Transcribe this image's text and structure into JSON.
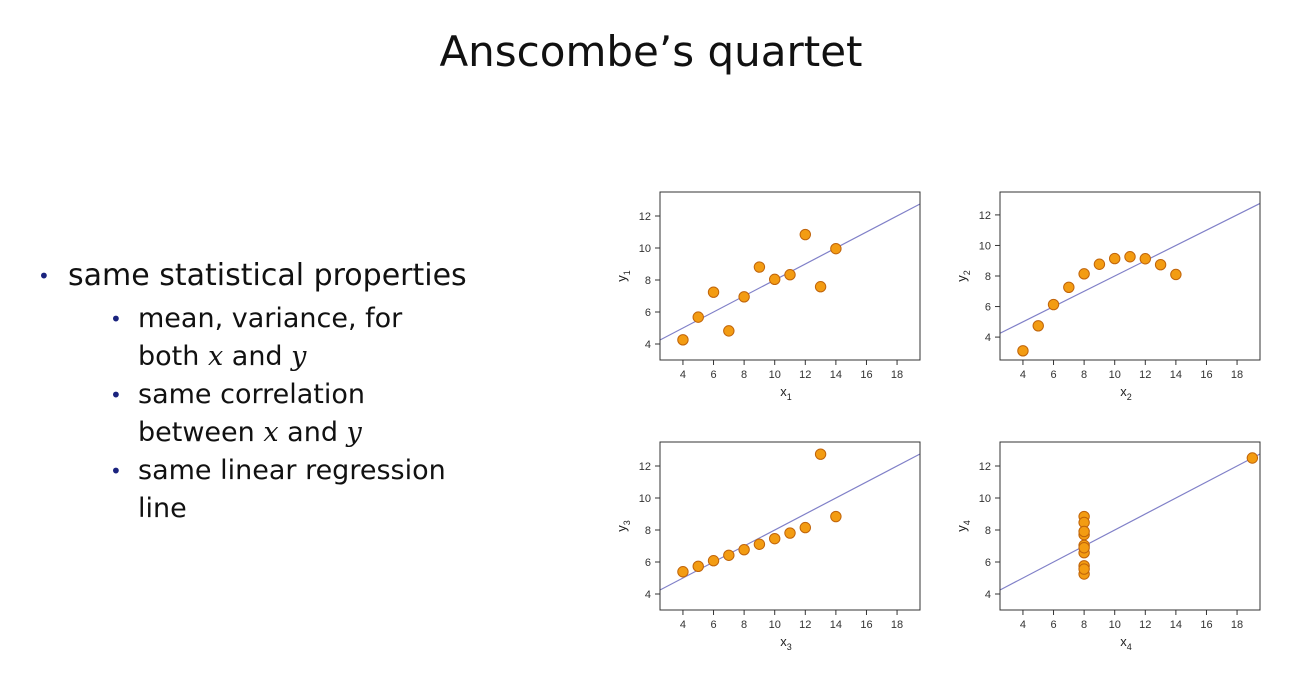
{
  "slide": {
    "title": "Anscombe’s quartet",
    "bullets": [
      {
        "text": "same statistical properties",
        "sub": [
          {
            "parts": [
              "mean, variance, for",
              "both ",
              "x",
              " and ",
              "y"
            ]
          },
          {
            "parts": [
              "same correlation",
              "between ",
              "x",
              " and ",
              "y"
            ]
          },
          {
            "parts": [
              "same linear regression",
              "line"
            ]
          }
        ]
      }
    ]
  },
  "colors": {
    "point": "#f39c12",
    "point_edge": "#c0640a",
    "line": "#8080c8",
    "axis": "#333333"
  },
  "chart_data": [
    {
      "type": "scatter",
      "xlabel": "x",
      "xlabel_sub": "1",
      "ylabel": "y",
      "ylabel_sub": "1",
      "xlim": [
        2.5,
        19.5
      ],
      "ylim": [
        3,
        13.5
      ],
      "xticks": [
        4,
        6,
        8,
        10,
        12,
        14,
        16,
        18
      ],
      "yticks": [
        4,
        6,
        8,
        10,
        12
      ],
      "x": [
        10,
        8,
        13,
        9,
        11,
        14,
        6,
        4,
        12,
        7,
        5
      ],
      "y": [
        8.04,
        6.95,
        7.58,
        8.81,
        8.33,
        9.96,
        7.24,
        4.26,
        10.84,
        4.82,
        5.68
      ],
      "regression": {
        "intercept": 3.0,
        "slope": 0.5
      }
    },
    {
      "type": "scatter",
      "xlabel": "x",
      "xlabel_sub": "2",
      "ylabel": "y",
      "ylabel_sub": "2",
      "xlim": [
        2.5,
        19.5
      ],
      "ylim": [
        2.5,
        13.5
      ],
      "xticks": [
        4,
        6,
        8,
        10,
        12,
        14,
        16,
        18
      ],
      "yticks": [
        4,
        6,
        8,
        10,
        12
      ],
      "x": [
        10,
        8,
        13,
        9,
        11,
        14,
        6,
        4,
        12,
        7,
        5
      ],
      "y": [
        9.14,
        8.14,
        8.74,
        8.77,
        9.26,
        8.1,
        6.13,
        3.1,
        9.13,
        7.26,
        4.74
      ],
      "regression": {
        "intercept": 3.0,
        "slope": 0.5
      }
    },
    {
      "type": "scatter",
      "xlabel": "x",
      "xlabel_sub": "3",
      "ylabel": "y",
      "ylabel_sub": "3",
      "xlim": [
        2.5,
        19.5
      ],
      "ylim": [
        3,
        13.5
      ],
      "xticks": [
        4,
        6,
        8,
        10,
        12,
        14,
        16,
        18
      ],
      "yticks": [
        4,
        6,
        8,
        10,
        12
      ],
      "x": [
        10,
        8,
        13,
        9,
        11,
        14,
        6,
        4,
        12,
        7,
        5
      ],
      "y": [
        7.46,
        6.77,
        12.74,
        7.11,
        7.81,
        8.84,
        6.08,
        5.39,
        8.15,
        6.42,
        5.73
      ],
      "regression": {
        "intercept": 3.0,
        "slope": 0.5
      }
    },
    {
      "type": "scatter",
      "xlabel": "x",
      "xlabel_sub": "4",
      "ylabel": "y",
      "ylabel_sub": "4",
      "xlim": [
        2.5,
        19.5
      ],
      "ylim": [
        3,
        13.5
      ],
      "xticks": [
        4,
        6,
        8,
        10,
        12,
        14,
        16,
        18
      ],
      "yticks": [
        4,
        6,
        8,
        10,
        12
      ],
      "x": [
        8,
        8,
        8,
        8,
        8,
        8,
        8,
        19,
        8,
        8,
        8
      ],
      "y": [
        6.58,
        5.76,
        7.71,
        8.84,
        8.47,
        7.04,
        5.25,
        12.5,
        5.56,
        7.91,
        6.89
      ],
      "regression": {
        "intercept": 3.0,
        "slope": 0.5
      }
    }
  ]
}
